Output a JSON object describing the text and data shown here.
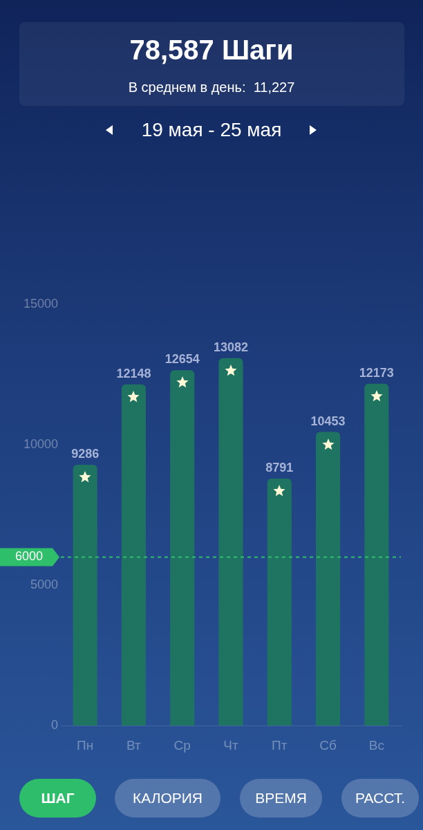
{
  "chart_data": {
    "type": "bar",
    "title": "78,587 Шаги",
    "subtitle": "В среднем в день:  11,227",
    "categories": [
      "Пн",
      "Вт",
      "Ср",
      "Чт",
      "Пт",
      "Сб",
      "Вс"
    ],
    "values": [
      9286,
      12148,
      12654,
      13082,
      8791,
      10453,
      12173
    ],
    "color": "#1e7461",
    "ylim": [
      0,
      15000
    ],
    "yticks": [
      0,
      5000,
      10000,
      15000
    ],
    "grid": false,
    "data_labels": true,
    "legend": false,
    "ref_lines": [
      {
        "axis": "y",
        "value": 6000,
        "label": "6000",
        "color": "#2fbf6a",
        "line_style": "dashed"
      }
    ],
    "annotations": [
      "19 мая - 25 мая",
      "ШАГ",
      "КАЛОРИЯ",
      "ВРЕМЯ",
      "РАССТ."
    ]
  }
}
